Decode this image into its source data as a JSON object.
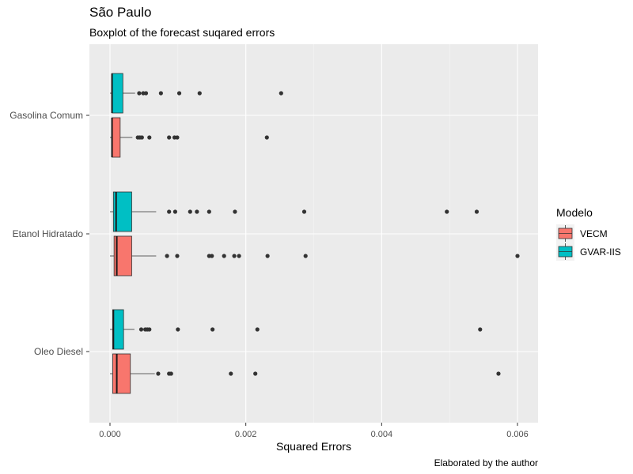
{
  "title": "São Paulo",
  "subtitle": "Boxplot of the forecast suqared errors",
  "caption": "Elaborated by the author",
  "chart_data": {
    "type": "boxplot",
    "orientation": "horizontal",
    "title": "São Paulo",
    "subtitle": "Boxplot of the forecast suqared errors",
    "xlabel": "Squared Errors",
    "xlim": [
      -0.00025,
      0.0062
    ],
    "x_ticks": [
      0,
      0.002,
      0.004,
      0.006
    ],
    "x_tick_labels": [
      "0.000",
      "0.002",
      "0.004",
      "0.006"
    ],
    "categories": [
      "Gasolina Comum",
      "Etanol Hidratado",
      "Oleo Diesel"
    ],
    "grid": true,
    "legend": {
      "title": "Modelo",
      "position": "right",
      "entries": [
        {
          "name": "VECM",
          "color": "#F8766D"
        },
        {
          "name": "GVAR-IIS",
          "color": "#00BFC4"
        }
      ]
    },
    "series": [
      {
        "name": "VECM",
        "color": "#F8766D",
        "boxes": [
          {
            "category": "Gasolina Comum",
            "min": 0.0,
            "q1": 3e-05,
            "median": 3e-05,
            "q3": 0.00015,
            "max": 0.00033,
            "outliers": [
              0.00041,
              0.00044,
              0.00047,
              0.00058,
              0.00087,
              0.00095,
              0.00099,
              0.00231
            ]
          },
          {
            "category": "Etanol Hidratado",
            "min": 0.0,
            "q1": 6e-05,
            "median": 0.0001,
            "q3": 0.00032,
            "max": 0.00068,
            "outliers": [
              0.00084,
              0.00099,
              0.00146,
              0.0015,
              0.00168,
              0.00183,
              0.0019,
              0.00232,
              0.00288,
              0.006
            ]
          },
          {
            "category": "Oleo Diesel",
            "min": 0.0,
            "q1": 4e-05,
            "median": 0.0001,
            "q3": 0.0003,
            "max": 0.00066,
            "outliers": [
              0.00071,
              0.00087,
              0.0009,
              0.00178,
              0.00214,
              0.00572
            ]
          }
        ]
      },
      {
        "name": "GVAR-IIS",
        "color": "#00BFC4",
        "boxes": [
          {
            "category": "Gasolina Comum",
            "min": 0.0,
            "q1": 3e-05,
            "median": 3e-05,
            "q3": 0.00019,
            "max": 0.00037,
            "outliers": [
              0.00043,
              0.00049,
              0.00053,
              0.00075,
              0.00102,
              0.00132,
              0.00252
            ]
          },
          {
            "category": "Etanol Hidratado",
            "min": 0.0,
            "q1": 5e-05,
            "median": 9e-05,
            "q3": 0.00032,
            "max": 0.00068,
            "outliers": [
              0.00087,
              0.00096,
              0.00118,
              0.00128,
              0.00146,
              0.00184,
              0.00286,
              0.00496,
              0.0054
            ]
          },
          {
            "category": "Oleo Diesel",
            "min": 0.0,
            "q1": 4e-05,
            "median": 5e-05,
            "q3": 0.0002,
            "max": 0.00036,
            "outliers": [
              0.00046,
              0.00052,
              0.00055,
              0.00058,
              0.001,
              0.00151,
              0.00217,
              0.00545
            ]
          }
        ]
      }
    ]
  }
}
